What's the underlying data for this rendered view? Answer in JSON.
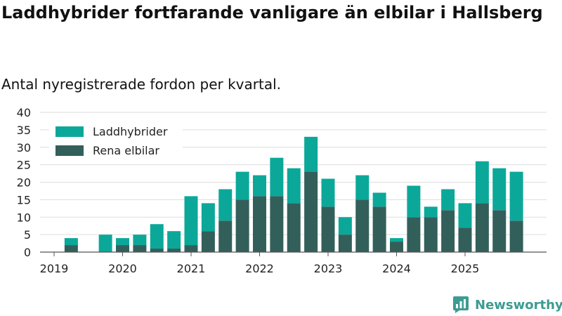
{
  "header": {
    "title": "Laddhybrider fortfarande vanligare än elbilar i Hallsberg",
    "subtitle": "Antal nyregistrerade fordon per kvartal."
  },
  "brand": {
    "name": "Newsworthy"
  },
  "colors": {
    "laddhybrider": "#0ba89a",
    "rena_elbilar": "#335f5a",
    "brand": "#3e9b91"
  },
  "chart_data": {
    "type": "bar",
    "stacked": true,
    "categories": [
      "2019-Q1",
      "2019-Q2",
      "2019-Q3",
      "2019-Q4",
      "2020-Q1",
      "2020-Q2",
      "2020-Q3",
      "2020-Q4",
      "2021-Q1",
      "2021-Q2",
      "2021-Q3",
      "2021-Q4",
      "2022-Q1",
      "2022-Q2",
      "2022-Q3",
      "2022-Q4",
      "2023-Q1",
      "2023-Q2",
      "2023-Q3",
      "2023-Q4",
      "2024-Q1",
      "2024-Q2",
      "2024-Q3",
      "2024-Q4",
      "2025-Q1",
      "2025-Q2",
      "2025-Q3",
      "2025-Q4"
    ],
    "x_tick_labels": [
      "2019",
      "2020",
      "2021",
      "2022",
      "2023",
      "2024",
      "2025"
    ],
    "series": [
      {
        "name": "Rena elbilar",
        "values": [
          0,
          2,
          0,
          0,
          2,
          2,
          1,
          1,
          2,
          6,
          9,
          15,
          16,
          16,
          14,
          23,
          13,
          5,
          15,
          13,
          3,
          10,
          10,
          12,
          7,
          14,
          12,
          9
        ]
      },
      {
        "name": "Laddhybrider",
        "values": [
          0,
          2,
          0,
          5,
          2,
          3,
          7,
          5,
          14,
          8,
          9,
          8,
          6,
          11,
          10,
          10,
          8,
          5,
          7,
          4,
          1,
          9,
          3,
          6,
          7,
          12,
          12,
          14
        ]
      }
    ],
    "ylim": [
      0,
      40
    ],
    "y_ticks": [
      0,
      5,
      10,
      15,
      20,
      25,
      30,
      35,
      40
    ],
    "grid": true,
    "legend_position": "top-left",
    "legend_order": [
      "Laddhybrider",
      "Rena elbilar"
    ]
  }
}
